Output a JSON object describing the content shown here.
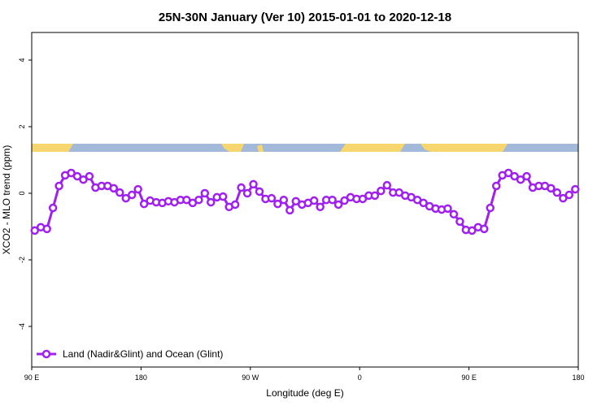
{
  "chart_data": {
    "type": "line",
    "title": "25N-30N January (Ver 10)   2015-01-01 to 2020-12-18",
    "x_label": "Longitude (deg E)",
    "y_label": "XCO2 - MLO trend (ppm)",
    "x": [
      92.5,
      97.5,
      102.5,
      107.5,
      112.5,
      117.5,
      122.5,
      127.5,
      132.5,
      137.5,
      142.5,
      147.5,
      152.5,
      157.5,
      162.5,
      167.5,
      172.5,
      177.5,
      182.5,
      187.5,
      192.5,
      197.5,
      202.5,
      207.5,
      212.5,
      217.5,
      222.5,
      227.5,
      232.5,
      237.5,
      242.5,
      247.5,
      252.5,
      257.5,
      262.5,
      267.5,
      272.5,
      277.5,
      282.5,
      287.5,
      292.5,
      297.5,
      302.5,
      307.5,
      312.5,
      317.5,
      322.5,
      327.5,
      332.5,
      337.5,
      342.5,
      347.5,
      352.5,
      357.5,
      362.5,
      367.5,
      372.5,
      377.5,
      382.5,
      387.5,
      392.5,
      397.5,
      402.5,
      407.5,
      412.5,
      417.5,
      422.5,
      427.5,
      432.5,
      437.5,
      442.5,
      447.5,
      452.5,
      457.5,
      462.5,
      467.5,
      472.5,
      477.5,
      482.5,
      487.5,
      492.5,
      497.5,
      502.5,
      507.5,
      512.5,
      517.5,
      522.5,
      527.5,
      532.5,
      537.5
    ],
    "series": [
      {
        "name": "Land (Nadir&Glint) and Ocean (Glint)",
        "color": "#a020f0",
        "values": [
          -1.12,
          -1.02,
          -1.07,
          -0.44,
          0.22,
          0.54,
          0.61,
          0.51,
          0.41,
          0.51,
          0.17,
          0.22,
          0.22,
          0.15,
          0.02,
          -0.15,
          -0.05,
          0.12,
          -0.32,
          -0.22,
          -0.27,
          -0.29,
          -0.24,
          -0.27,
          -0.2,
          -0.2,
          -0.29,
          -0.2,
          0,
          -0.27,
          -0.12,
          -0.1,
          -0.41,
          -0.34,
          0.17,
          0,
          0.27,
          0.05,
          -0.17,
          -0.15,
          -0.32,
          -0.2,
          -0.51,
          -0.24,
          -0.34,
          -0.29,
          -0.22,
          -0.41,
          -0.2,
          -0.2,
          -0.34,
          -0.22,
          -0.12,
          -0.17,
          -0.17,
          -0.07,
          -0.07,
          0.07,
          0.24,
          0.02,
          0.02,
          -0.07,
          -0.12,
          -0.2,
          -0.29,
          -0.39,
          -0.46,
          -0.49,
          -0.46,
          -0.63,
          -0.85,
          -1.1,
          -1.12,
          -1.02,
          -1.07,
          -0.44,
          0.22,
          0.54,
          0.61,
          0.51,
          0.41,
          0.51,
          0.17,
          0.22,
          0.22,
          0.15,
          0.02,
          -0.15,
          -0.05,
          0.12
        ]
      }
    ],
    "xlim": [
      90,
      540
    ],
    "xticks": [
      {
        "value": 90,
        "label": "90 E"
      },
      180,
      {
        "value": 270,
        "label": "90 W"
      },
      {
        "value": 360,
        "label": "0"
      },
      {
        "value": 450,
        "label": "90 E"
      },
      {
        "value": 540,
        "label": "180"
      }
    ],
    "ylim": [
      -5.22,
      4.83
    ],
    "yticks": [
      -4,
      -2,
      0,
      2,
      4
    ],
    "legend": "bottom-left"
  }
}
